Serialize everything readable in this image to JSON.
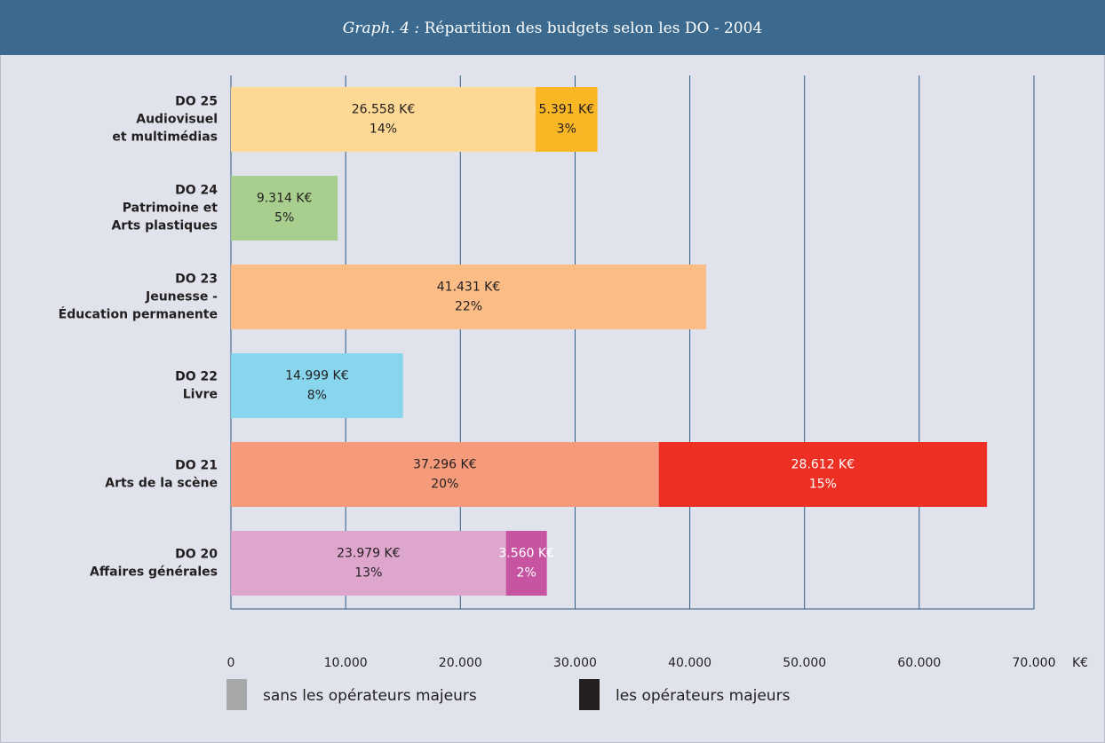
{
  "chart_data": {
    "type": "stacked-barh",
    "title_label": "Graph. 4 :",
    "title": "Répartition des budgets selon les DO - 2004",
    "categories": [
      [
        "DO 25",
        "Audiovisuel",
        "et multimédias"
      ],
      [
        "DO 24",
        "Patrimoine et",
        "Arts plastiques"
      ],
      [
        "DO 23",
        "Jeunesse -",
        "Éducation permanente"
      ],
      [
        "DO 22",
        "Livre"
      ],
      [
        "DO 21",
        "Arts de la scène"
      ],
      [
        "DO 20",
        "Affaires générales"
      ]
    ],
    "series": [
      {
        "name": "sans les opérateurs majeurs",
        "color": "#a7a8aa",
        "colors": [
          "#fed895",
          "#a8cf8e",
          "#fbbc86",
          "#88d5ee",
          "#f59a7a",
          "#dea6cc"
        ],
        "values": [
          26558,
          9314,
          41431,
          14999,
          37296,
          23979
        ],
        "value_labels": [
          "26.558 K€",
          "9.314 K€",
          "41.431 K€",
          "14.999 K€",
          "37.296 K€",
          "23.979 K€"
        ],
        "percent_labels": [
          "14%",
          "5%",
          "22%",
          "8%",
          "20%",
          "13%"
        ]
      },
      {
        "name": "les opérateurs majeurs",
        "color": "#231f20",
        "colors": [
          "#f9b625",
          null,
          null,
          null,
          "#ee3024",
          "#c654a0"
        ],
        "values": [
          5391,
          null,
          null,
          null,
          28612,
          3560
        ],
        "value_labels": [
          "5.391 K€",
          null,
          null,
          null,
          "28.612 K€",
          "3.560 K€"
        ],
        "percent_labels": [
          "3%",
          null,
          null,
          null,
          "15%",
          "2%"
        ]
      }
    ],
    "xlim": [
      0,
      70000
    ],
    "xticks": [
      0,
      {
        "value": 10000,
        "label": "10.000"
      },
      {
        "value": 20000,
        "label": "20.000"
      },
      {
        "value": 30000,
        "label": "30.000"
      },
      {
        "value": 40000,
        "label": "40.000"
      },
      {
        "value": 50000,
        "label": "50.000"
      },
      {
        "value": 60000,
        "label": "60.000"
      },
      {
        "value": 70000,
        "label": "70.000"
      }
    ],
    "x_unit": "K€",
    "grid": true
  }
}
